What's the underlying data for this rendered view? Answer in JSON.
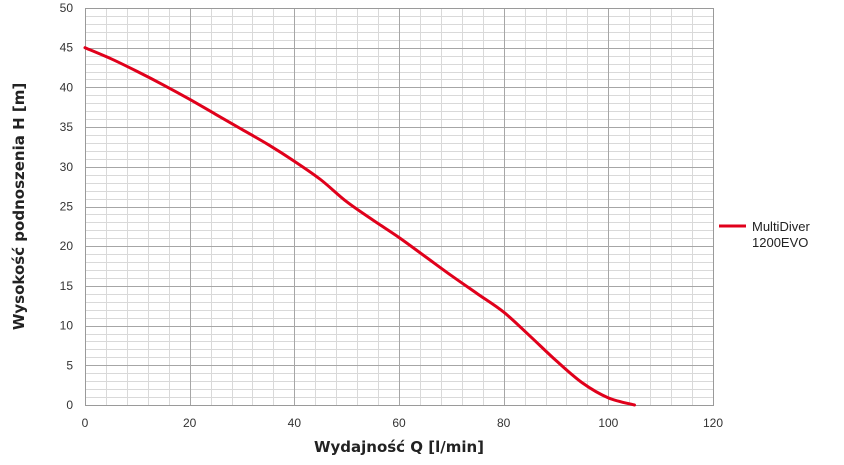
{
  "chart_data": {
    "type": "line",
    "xlabel": "Wydajność Q [l/min]",
    "ylabel": "Wysokość podnoszenia H [m]",
    "xlim": [
      0,
      120
    ],
    "ylim": [
      0,
      50
    ],
    "x_major_step": 20,
    "x_minor_step": 4,
    "y_major_step": 5,
    "y_minor_step": 1,
    "grid": true,
    "legend_position": "right",
    "series": [
      {
        "name": "MultiDiver 1200EVO",
        "color": "#e0001b",
        "x": [
          0,
          5,
          10,
          15,
          20,
          25,
          30,
          35,
          40,
          45,
          50,
          55,
          60,
          65,
          70,
          75,
          80,
          85,
          90,
          95,
          100,
          105
        ],
        "y": [
          45,
          43.6,
          42,
          40.3,
          38.5,
          36.6,
          34.7,
          32.8,
          30.7,
          28.4,
          25.6,
          23.3,
          21.1,
          18.7,
          16.3,
          14.0,
          11.7,
          8.7,
          5.6,
          2.8,
          0.9,
          0
        ]
      }
    ],
    "x_ticks": [
      "0",
      "20",
      "40",
      "60",
      "80",
      "100",
      "120"
    ],
    "y_ticks": [
      "0",
      "5",
      "10",
      "15",
      "20",
      "25",
      "30",
      "35",
      "40",
      "45",
      "50"
    ],
    "legend_lines": [
      "MultiDiver",
      "1200EVO"
    ]
  }
}
